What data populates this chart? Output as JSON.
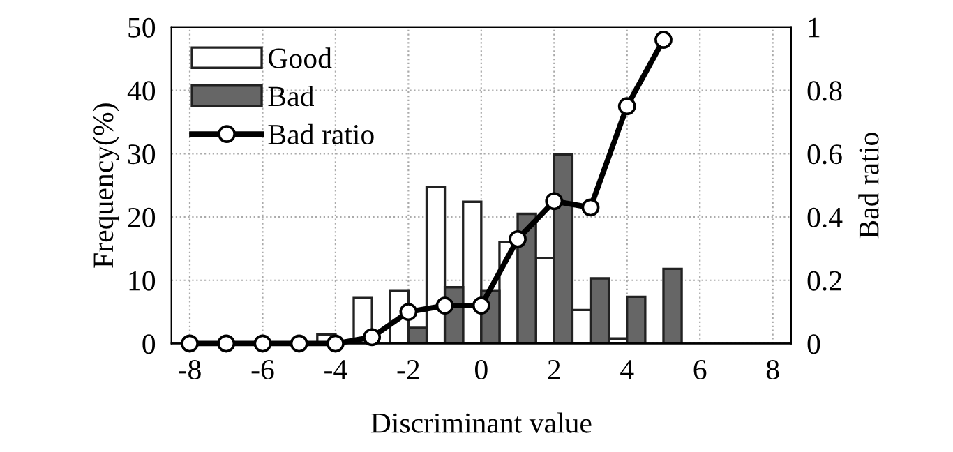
{
  "chart_data": {
    "type": "bar",
    "xlabel": "Discriminant value",
    "ylabel": "Frequency(%)",
    "y2label": "Bad ratio",
    "series": [
      {
        "name": "Good",
        "color": "#ffffff",
        "x": [
          -4,
          -3,
          -2,
          -1,
          0,
          1,
          2,
          3,
          4
        ],
        "values": [
          1.4,
          7.2,
          8.3,
          24.7,
          22.4,
          16,
          13.5,
          5.3,
          0.8
        ]
      },
      {
        "name": "Bad",
        "color": "#666666",
        "x": [
          -2,
          -1,
          0,
          1,
          2,
          3,
          4,
          5
        ],
        "values": [
          2.5,
          8.9,
          8.3,
          20.5,
          29.9,
          10.3,
          7.4,
          11.8
        ]
      },
      {
        "name": "Bad ratio",
        "type": "line",
        "axis": "y2",
        "color": "#000000",
        "marker": "circle",
        "x": [
          -8,
          -7,
          -6,
          -5,
          -4,
          -3,
          -2,
          -1,
          0,
          1,
          2,
          3,
          4,
          5
        ],
        "values": [
          0,
          0,
          0,
          0,
          0,
          0.02,
          0.1,
          0.12,
          0.12,
          0.33,
          0.45,
          0.43,
          0.75,
          0.96
        ]
      }
    ],
    "xlim": [
      -8.5,
      8.5
    ],
    "xticks": [
      -8,
      -6,
      -4,
      -2,
      0,
      2,
      4,
      6,
      8
    ],
    "ylim": [
      0,
      50
    ],
    "yticks": [
      0,
      10,
      20,
      30,
      40,
      50
    ],
    "y2lim": [
      0,
      1
    ],
    "y2ticks": [
      0,
      0.2,
      0.4,
      0.6,
      0.8,
      1
    ],
    "grid": true,
    "legend": "top left"
  }
}
